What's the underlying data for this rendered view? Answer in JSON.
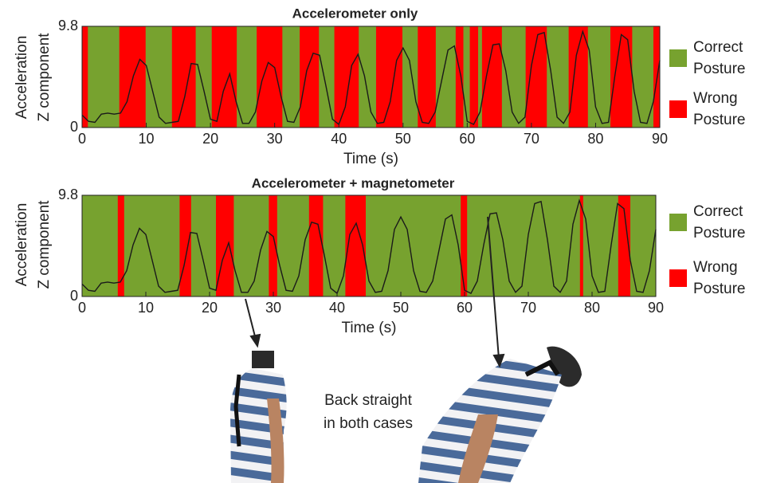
{
  "chart_data": [
    {
      "type": "line",
      "title": "Accelerometer only",
      "xlabel": "Time (s)",
      "ylabel": [
        "Acceleration",
        "Z component"
      ],
      "xlim": [
        0,
        90
      ],
      "xticks": [
        0,
        10,
        20,
        30,
        40,
        50,
        60,
        70,
        80,
        90
      ],
      "ylim": [
        0,
        9.8
      ],
      "yticks": [
        0,
        9.8
      ],
      "line_color": "#1a1a1a",
      "x": [
        0,
        1,
        2,
        3,
        4,
        5,
        6,
        7,
        8,
        9,
        10,
        11,
        12,
        13,
        14,
        15,
        16,
        17,
        18,
        19,
        20,
        21,
        22,
        23,
        24,
        25,
        26,
        27,
        28,
        29,
        30,
        31,
        32,
        33,
        34,
        35,
        36,
        37,
        38,
        39,
        40,
        41,
        42,
        43,
        44,
        45,
        46,
        47,
        48,
        49,
        50,
        51,
        52,
        53,
        54,
        55,
        56,
        57,
        58,
        59,
        60,
        61,
        62,
        63,
        64,
        65,
        66,
        67,
        68,
        69,
        70,
        71,
        72,
        73,
        74,
        75,
        76,
        77,
        78,
        79,
        80,
        81,
        82,
        83,
        84,
        85,
        86,
        87,
        88,
        89,
        90
      ],
      "values": [
        1.2,
        0.6,
        0.5,
        1.3,
        1.4,
        1.3,
        1.4,
        2.5,
        5.0,
        6.6,
        6.0,
        3.5,
        1.0,
        0.4,
        0.5,
        0.6,
        3.0,
        6.2,
        6.1,
        3.5,
        0.8,
        0.6,
        3.5,
        5.2,
        2.5,
        0.4,
        0.4,
        1.5,
        4.5,
        6.3,
        5.8,
        3.0,
        0.6,
        0.5,
        2.0,
        5.5,
        7.2,
        7.0,
        4.0,
        0.8,
        0.3,
        2.0,
        6.0,
        7.1,
        5.0,
        1.5,
        0.4,
        0.5,
        2.5,
        6.5,
        7.7,
        6.5,
        2.5,
        0.5,
        0.4,
        1.5,
        4.5,
        7.5,
        7.9,
        5.0,
        0.6,
        0.3,
        1.5,
        5.0,
        8.0,
        8.1,
        5.5,
        1.5,
        0.4,
        1.0,
        6.0,
        9.0,
        9.2,
        5.5,
        1.0,
        0.4,
        1.5,
        7.0,
        9.3,
        7.5,
        2.0,
        0.4,
        0.5,
        5.0,
        9.0,
        8.5,
        3.5,
        0.5,
        0.4,
        2.5,
        6.5
      ],
      "bands": [
        {
          "name": [
            "Correct",
            "Posture"
          ],
          "color": "#77a22f"
        },
        {
          "name": [
            "Wrong",
            "Posture"
          ],
          "color": "#ff0000",
          "intervals": [
            [
              0,
              0.9
            ],
            [
              5.8,
              9.9
            ],
            [
              14,
              17.7
            ],
            [
              20.2,
              24.1
            ],
            [
              27.2,
              31.2
            ],
            [
              33.9,
              36.9
            ],
            [
              39.3,
              43.1
            ],
            [
              45.8,
              49.9
            ],
            [
              52.3,
              55.1
            ],
            [
              58.2,
              59.4
            ],
            [
              60.4,
              61.7
            ],
            [
              62.3,
              65.4
            ],
            [
              69.1,
              72.4
            ],
            [
              75.8,
              78.8
            ],
            [
              82.3,
              85.7
            ],
            [
              89,
              90
            ]
          ]
        }
      ]
    },
    {
      "type": "line",
      "title": "Accelerometer + magnetometer",
      "xlabel": "Time (s)",
      "ylabel": [
        "Acceleration",
        "Z component"
      ],
      "xlim": [
        0,
        90
      ],
      "xticks": [
        0,
        10,
        20,
        30,
        40,
        50,
        60,
        70,
        80,
        90
      ],
      "ylim": [
        0,
        9.8
      ],
      "yticks": [
        0,
        9.8
      ],
      "line_color": "#1a1a1a",
      "x": [
        0,
        1,
        2,
        3,
        4,
        5,
        6,
        7,
        8,
        9,
        10,
        11,
        12,
        13,
        14,
        15,
        16,
        17,
        18,
        19,
        20,
        21,
        22,
        23,
        24,
        25,
        26,
        27,
        28,
        29,
        30,
        31,
        32,
        33,
        34,
        35,
        36,
        37,
        38,
        39,
        40,
        41,
        42,
        43,
        44,
        45,
        46,
        47,
        48,
        49,
        50,
        51,
        52,
        53,
        54,
        55,
        56,
        57,
        58,
        59,
        60,
        61,
        62,
        63,
        64,
        65,
        66,
        67,
        68,
        69,
        70,
        71,
        72,
        73,
        74,
        75,
        76,
        77,
        78,
        79,
        80,
        81,
        82,
        83,
        84,
        85,
        86,
        87,
        88,
        89,
        90
      ],
      "values": [
        1.2,
        0.6,
        0.5,
        1.3,
        1.4,
        1.3,
        1.4,
        2.5,
        5.0,
        6.6,
        6.0,
        3.5,
        1.0,
        0.4,
        0.5,
        0.6,
        3.0,
        6.2,
        6.1,
        3.5,
        0.8,
        0.6,
        3.5,
        5.2,
        2.5,
        0.4,
        0.4,
        1.5,
        4.5,
        6.3,
        5.8,
        3.0,
        0.6,
        0.5,
        2.0,
        5.5,
        7.2,
        7.0,
        4.0,
        0.8,
        0.3,
        2.0,
        6.0,
        7.1,
        5.0,
        1.5,
        0.4,
        0.5,
        2.5,
        6.5,
        7.7,
        6.5,
        2.5,
        0.5,
        0.4,
        1.5,
        4.5,
        7.5,
        7.9,
        5.0,
        0.6,
        0.3,
        1.5,
        5.0,
        8.0,
        8.1,
        5.5,
        1.5,
        0.4,
        1.0,
        6.0,
        9.0,
        9.2,
        5.5,
        1.0,
        0.4,
        1.5,
        7.0,
        9.3,
        7.5,
        2.0,
        0.4,
        0.5,
        5.0,
        9.0,
        8.5,
        3.5,
        0.5,
        0.4,
        2.5,
        6.5
      ],
      "bands": [
        {
          "name": [
            "Correct",
            "Posture"
          ],
          "color": "#77a22f"
        },
        {
          "name": [
            "Wrong",
            "Posture"
          ],
          "color": "#ff0000",
          "intervals": [
            [
              5.6,
              6.6
            ],
            [
              15.3,
              17.1
            ],
            [
              21,
              23.8
            ],
            [
              29.3,
              30.6
            ],
            [
              35.6,
              37.8
            ],
            [
              41.3,
              44.5
            ],
            [
              59.4,
              60.4
            ],
            [
              78.1,
              78.6
            ],
            [
              84.1,
              86
            ]
          ]
        }
      ]
    }
  ],
  "annotation": [
    "Back straight",
    "in both cases"
  ]
}
